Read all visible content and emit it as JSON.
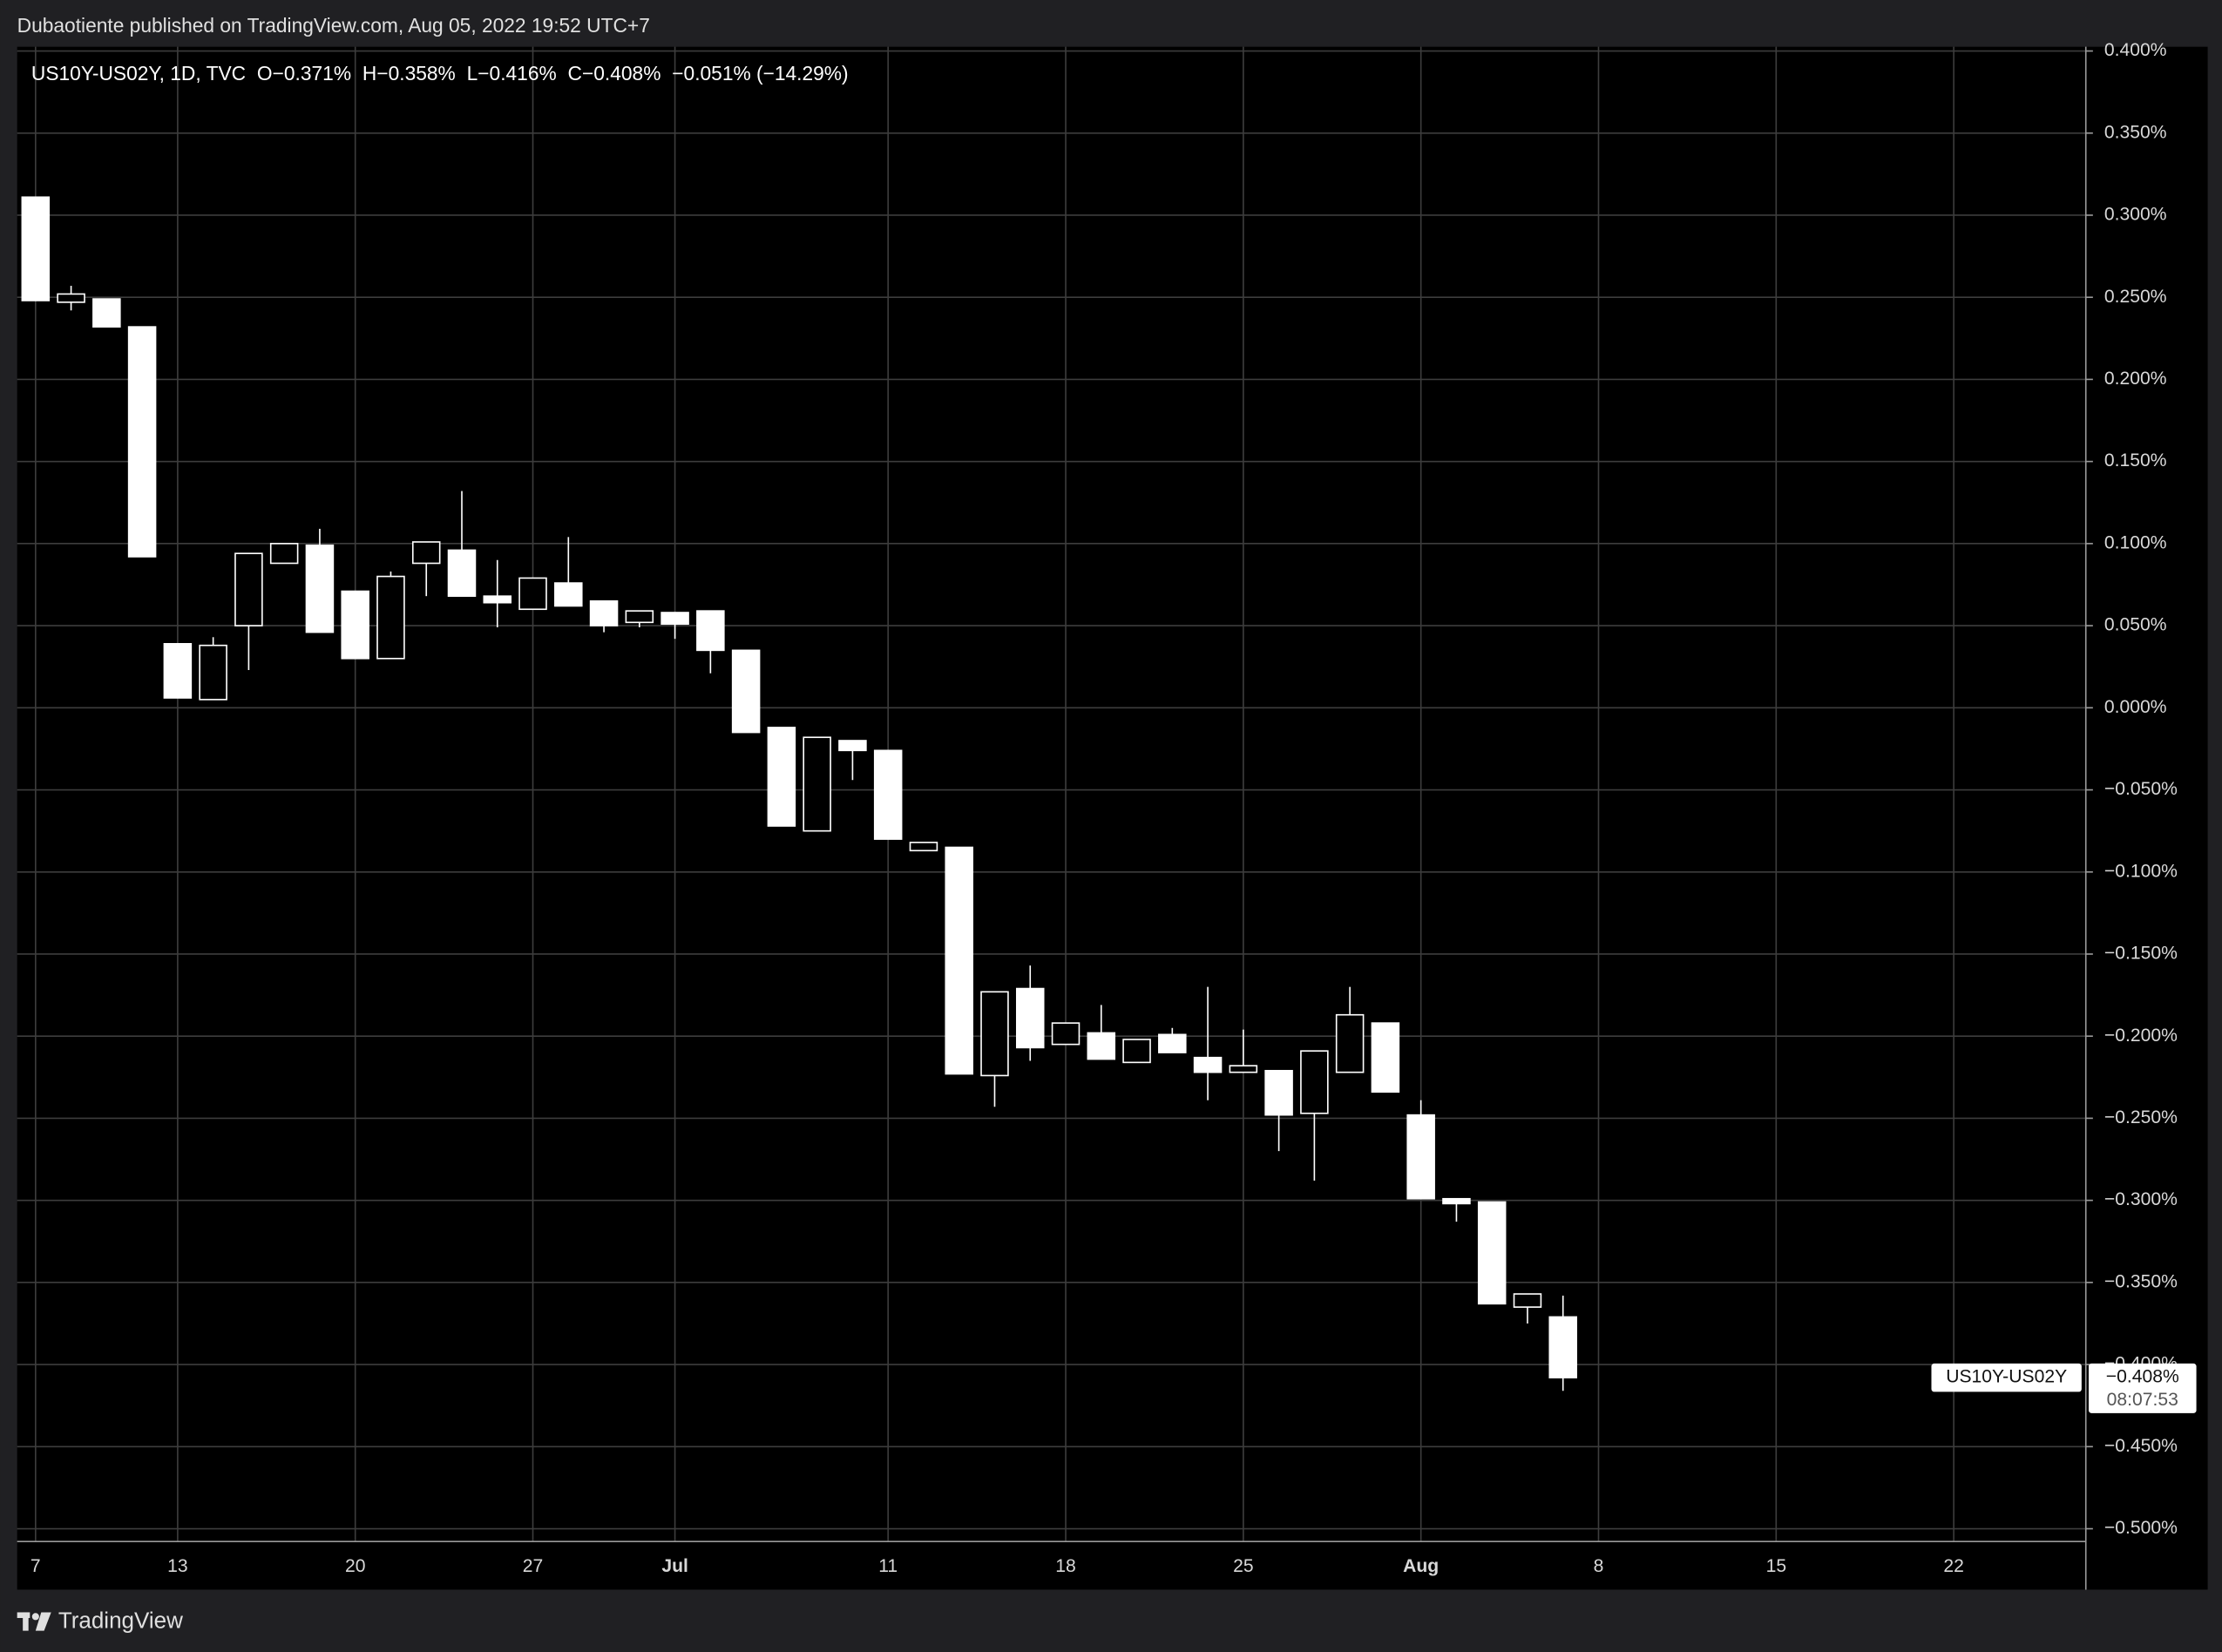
{
  "header": {
    "published": "Dubaotiente published on TradingView.com, Aug 05, 2022 19:52 UTC+7"
  },
  "chart_data": {
    "type": "candlestick",
    "legend": {
      "symbol": "US10Y-US02Y, 1D, TVC",
      "ohlc": [
        "O−0.371%",
        "H−0.358%",
        "L−0.416%",
        "C−0.408%"
      ],
      "change": "−0.051% (−14.29%)"
    },
    "categories": [
      "7",
      null,
      null,
      null,
      "13",
      null,
      null,
      null,
      null,
      "20",
      null,
      null,
      null,
      null,
      "27",
      null,
      null,
      null,
      "Jul",
      null,
      null,
      null,
      null,
      null,
      "11",
      null,
      null,
      null,
      null,
      "18",
      null,
      null,
      null,
      null,
      "25",
      null,
      null,
      null,
      null,
      "Aug",
      null,
      null,
      null,
      null,
      "8",
      null,
      null,
      null,
      null,
      "15",
      null,
      null,
      null,
      null,
      "22",
      null,
      null,
      null
    ],
    "open": [
      0.311,
      0.247,
      0.249,
      0.232,
      0.039,
      0.005,
      0.05,
      0.088,
      0.099,
      0.071,
      0.03,
      0.088,
      0.096,
      0.068,
      0.06,
      0.076,
      0.065,
      0.052,
      0.058,
      0.059,
      0.035,
      -0.012,
      -0.075,
      -0.02,
      -0.026,
      -0.087,
      -0.085,
      -0.224,
      -0.171,
      -0.205,
      -0.198,
      -0.216,
      -0.199,
      -0.213,
      -0.222,
      -0.221,
      -0.247,
      -0.222,
      -0.192,
      -0.248,
      -0.299,
      -0.301,
      -0.365,
      -0.371,
      null,
      null,
      null,
      null,
      null,
      null,
      null,
      null,
      null,
      null,
      null,
      null,
      null,
      null
    ],
    "high": [
      0.311,
      0.257,
      0.249,
      0.232,
      0.039,
      0.043,
      0.094,
      0.1,
      0.109,
      0.071,
      0.083,
      0.101,
      0.132,
      0.09,
      0.079,
      0.104,
      0.065,
      0.059,
      0.058,
      0.059,
      0.035,
      -0.012,
      -0.018,
      -0.02,
      -0.026,
      -0.082,
      -0.085,
      -0.173,
      -0.157,
      -0.192,
      -0.181,
      -0.202,
      -0.195,
      -0.17,
      -0.196,
      -0.221,
      -0.209,
      -0.17,
      -0.192,
      -0.239,
      -0.299,
      -0.301,
      -0.357,
      -0.358,
      null,
      null,
      null,
      null,
      null,
      null,
      null,
      null,
      null,
      null,
      null,
      null,
      null,
      null
    ],
    "low": [
      0.248,
      0.242,
      0.232,
      0.092,
      0.006,
      0.005,
      0.023,
      0.088,
      0.046,
      0.03,
      0.03,
      0.068,
      0.068,
      0.049,
      0.06,
      0.062,
      0.046,
      0.049,
      0.042,
      0.021,
      -0.015,
      -0.072,
      -0.075,
      -0.044,
      -0.08,
      -0.087,
      -0.223,
      -0.243,
      -0.215,
      -0.205,
      -0.214,
      -0.216,
      -0.21,
      -0.239,
      -0.222,
      -0.27,
      -0.288,
      -0.222,
      -0.234,
      -0.299,
      -0.313,
      -0.363,
      -0.375,
      -0.416,
      null,
      null,
      null,
      null,
      null,
      null,
      null,
      null,
      null,
      null,
      null,
      null,
      null,
      null
    ],
    "close": [
      0.248,
      0.252,
      0.232,
      0.092,
      0.006,
      0.038,
      0.094,
      0.1,
      0.046,
      0.03,
      0.08,
      0.101,
      0.068,
      0.064,
      0.079,
      0.062,
      0.05,
      0.059,
      0.051,
      0.035,
      -0.015,
      -0.072,
      -0.018,
      -0.026,
      -0.08,
      -0.082,
      -0.223,
      -0.173,
      -0.207,
      -0.192,
      -0.214,
      -0.202,
      -0.21,
      -0.222,
      -0.218,
      -0.248,
      -0.209,
      -0.187,
      -0.234,
      -0.299,
      -0.302,
      -0.363,
      -0.357,
      -0.408,
      null,
      null,
      null,
      null,
      null,
      null,
      null,
      null,
      null,
      null,
      null,
      null,
      null,
      null
    ],
    "color": "#ffffff",
    "up_hollow": true,
    "ylim": [
      -0.5,
      0.4
    ],
    "yticks": [
      {
        "value": 0.4,
        "label": "0.400%"
      },
      {
        "value": 0.35,
        "label": "0.350%"
      },
      {
        "value": 0.3,
        "label": "0.300%"
      },
      {
        "value": 0.25,
        "label": "0.250%"
      },
      {
        "value": 0.2,
        "label": "0.200%"
      },
      {
        "value": 0.15,
        "label": "0.150%"
      },
      {
        "value": 0.1,
        "label": "0.100%"
      },
      {
        "value": 0.05,
        "label": "0.050%"
      },
      {
        "value": 0,
        "label": "0.000%"
      },
      {
        "value": -0.05,
        "label": "−0.050%"
      },
      {
        "value": -0.1,
        "label": "−0.100%"
      },
      {
        "value": -0.15,
        "label": "−0.150%"
      },
      {
        "value": -0.2,
        "label": "−0.200%"
      },
      {
        "value": -0.25,
        "label": "−0.250%"
      },
      {
        "value": -0.3,
        "label": "−0.300%"
      },
      {
        "value": -0.35,
        "label": "−0.350%"
      },
      {
        "value": -0.4,
        "label": "−0.400%"
      },
      {
        "value": -0.45,
        "label": "−0.450%"
      },
      {
        "value": -0.5,
        "label": "−0.500%"
      }
    ],
    "grid": true,
    "last_price": {
      "symbol": "US10Y-US02Y",
      "label": "−0.408%",
      "countdown": "08:07:53"
    }
  },
  "footer": {
    "brand": "TradingView"
  }
}
